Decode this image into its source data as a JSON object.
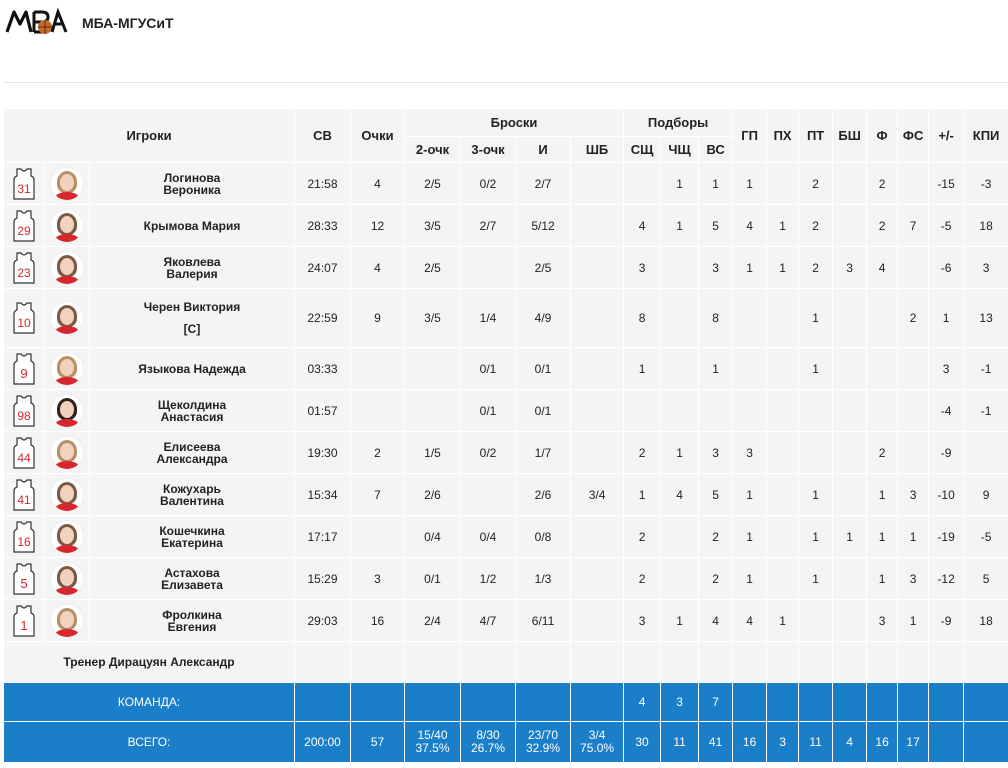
{
  "header": {
    "logo_text": "МБА",
    "team_name": "МБА-МГУСиТ"
  },
  "columns": {
    "players": "Игроки",
    "minutes": "СВ",
    "points": "Очки",
    "shots_group": "Броски",
    "two": "2-очк",
    "three": "3-очк",
    "fg": "И",
    "ft": "ШБ",
    "rebounds_group": "Подборы",
    "def": "СЩ",
    "off": "ЧЩ",
    "tot": "ВС",
    "ast": "ГП",
    "to": "ПХ",
    "stl": "ПТ",
    "blk": "БШ",
    "pf": "Ф",
    "fd": "ФС",
    "pm": "+/-",
    "eff": "КПИ"
  },
  "players": [
    {
      "number": "31",
      "name": "Логинова Вероника",
      "captain": "",
      "min": "21:58",
      "pts": "4",
      "p2": "2/5",
      "p3": "0/2",
      "fg": "2/7",
      "ft": "",
      "dr": "",
      "or": "1",
      "tr": "1",
      "ast": "1",
      "to": "",
      "stl": "2",
      "blk": "",
      "pf": "2",
      "fd": "",
      "pm": "-15",
      "eff": "-3",
      "hair": "light"
    },
    {
      "number": "29",
      "name": "Крымова Мария",
      "captain": "",
      "min": "28:33",
      "pts": "12",
      "p2": "3/5",
      "p3": "2/7",
      "fg": "5/12",
      "ft": "",
      "dr": "4",
      "or": "1",
      "tr": "5",
      "ast": "4",
      "to": "1",
      "stl": "2",
      "blk": "",
      "pf": "2",
      "fd": "7",
      "pm": "-5",
      "eff": "18",
      "hair": "mid"
    },
    {
      "number": "23",
      "name": "Яковлева Валерия",
      "captain": "",
      "min": "24:07",
      "pts": "4",
      "p2": "2/5",
      "p3": "",
      "fg": "2/5",
      "ft": "",
      "dr": "3",
      "or": "",
      "tr": "3",
      "ast": "1",
      "to": "1",
      "stl": "2",
      "blk": "3",
      "pf": "4",
      "fd": "",
      "pm": "-6",
      "eff": "3",
      "hair": "mid"
    },
    {
      "number": "10",
      "name": "Черен Виктория",
      "captain": "[C]",
      "min": "22:59",
      "pts": "9",
      "p2": "3/5",
      "p3": "1/4",
      "fg": "4/9",
      "ft": "",
      "dr": "8",
      "or": "",
      "tr": "8",
      "ast": "",
      "to": "",
      "stl": "1",
      "blk": "",
      "pf": "",
      "fd": "2",
      "pm": "1",
      "eff": "13",
      "hair": "mid"
    },
    {
      "number": "9",
      "name": "Языкова Надежда",
      "captain": "",
      "min": "03:33",
      "pts": "",
      "p2": "",
      "p3": "0/1",
      "fg": "0/1",
      "ft": "",
      "dr": "1",
      "or": "",
      "tr": "1",
      "ast": "",
      "to": "",
      "stl": "1",
      "blk": "",
      "pf": "",
      "fd": "",
      "pm": "3",
      "eff": "-1",
      "hair": "light"
    },
    {
      "number": "98",
      "name": "Щеколдина Анастасия",
      "captain": "",
      "min": "01:57",
      "pts": "",
      "p2": "",
      "p3": "0/1",
      "fg": "0/1",
      "ft": "",
      "dr": "",
      "or": "",
      "tr": "",
      "ast": "",
      "to": "",
      "stl": "",
      "blk": "",
      "pf": "",
      "fd": "",
      "pm": "-4",
      "eff": "-1",
      "hair": "dark"
    },
    {
      "number": "44",
      "name": "Елисеева Александра",
      "captain": "",
      "min": "19:30",
      "pts": "2",
      "p2": "1/5",
      "p3": "0/2",
      "fg": "1/7",
      "ft": "",
      "dr": "2",
      "or": "1",
      "tr": "3",
      "ast": "3",
      "to": "",
      "stl": "",
      "blk": "",
      "pf": "2",
      "fd": "",
      "pm": "-9",
      "eff": "",
      "hair": "light"
    },
    {
      "number": "41",
      "name": "Кожухарь Валентина",
      "captain": "",
      "min": "15:34",
      "pts": "7",
      "p2": "2/6",
      "p3": "",
      "fg": "2/6",
      "ft": "3/4",
      "dr": "1",
      "or": "4",
      "tr": "5",
      "ast": "1",
      "to": "",
      "stl": "1",
      "blk": "",
      "pf": "1",
      "fd": "3",
      "pm": "-10",
      "eff": "9",
      "hair": "mid"
    },
    {
      "number": "16",
      "name": "Кошечкина Екатерина",
      "captain": "",
      "min": "17:17",
      "pts": "",
      "p2": "0/4",
      "p3": "0/4",
      "fg": "0/8",
      "ft": "",
      "dr": "2",
      "or": "",
      "tr": "2",
      "ast": "1",
      "to": "",
      "stl": "1",
      "blk": "1",
      "pf": "1",
      "fd": "1",
      "pm": "-19",
      "eff": "-5",
      "hair": "mid"
    },
    {
      "number": "5",
      "name": "Астахова Елизавета",
      "captain": "",
      "min": "15:29",
      "pts": "3",
      "p2": "0/1",
      "p3": "1/2",
      "fg": "1/3",
      "ft": "",
      "dr": "2",
      "or": "",
      "tr": "2",
      "ast": "1",
      "to": "",
      "stl": "1",
      "blk": "",
      "pf": "1",
      "fd": "3",
      "pm": "-12",
      "eff": "5",
      "hair": "mid"
    },
    {
      "number": "1",
      "name": "Фролкина Евгения",
      "captain": "",
      "min": "29:03",
      "pts": "16",
      "p2": "2/4",
      "p3": "4/7",
      "fg": "6/11",
      "ft": "",
      "dr": "3",
      "or": "1",
      "tr": "4",
      "ast": "4",
      "to": "1",
      "stl": "",
      "blk": "",
      "pf": "3",
      "fd": "1",
      "pm": "-9",
      "eff": "18",
      "hair": "light"
    }
  ],
  "coach": "Тренер Дирацуян Александр",
  "team_row": {
    "label": "КОМАНДА:",
    "dr": "4",
    "or": "3",
    "tr": "7"
  },
  "total_row": {
    "label": "ВСЕГО:",
    "min": "200:00",
    "pts": "57",
    "p2": "15/40",
    "p2_pct": "37.5%",
    "p3": "8/30",
    "p3_pct": "26.7%",
    "fg": "23/70",
    "fg_pct": "32.9%",
    "ft": "3/4",
    "ft_pct": "75.0%",
    "dr": "30",
    "or": "11",
    "tr": "41",
    "ast": "16",
    "to": "3",
    "stl": "11",
    "blk": "4",
    "pf": "16",
    "fd": "17"
  },
  "colors": {
    "accent_blue": "#1a7fc8",
    "jersey_red": "#d8262e",
    "row_bg": "#f4f4f4"
  }
}
